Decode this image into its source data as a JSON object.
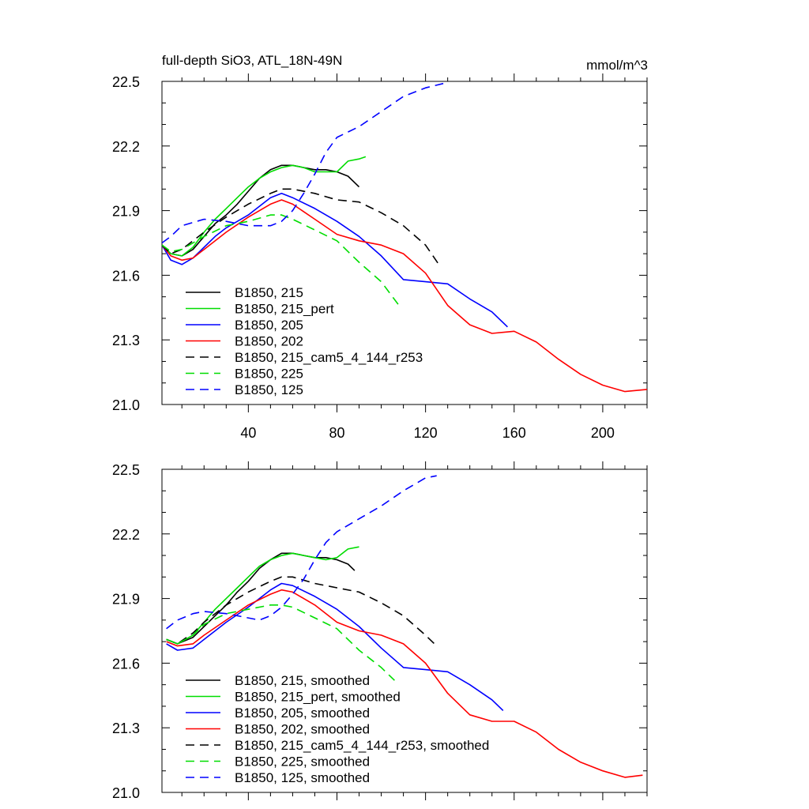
{
  "chart_data": [
    {
      "type": "line",
      "title": "full-depth SiO3, ATL_18N-49N",
      "units": "mmol/m^3",
      "xlim": [
        1,
        220
      ],
      "ylim": [
        21.0,
        22.5
      ],
      "x_ticks": [
        40,
        80,
        120,
        160,
        200
      ],
      "x_tick_labels": [
        "40",
        "80",
        "120",
        "160",
        "200"
      ],
      "y_ticks": [
        21.0,
        21.3,
        21.6,
        21.9,
        22.2,
        22.5
      ],
      "y_tick_labels": [
        "21.0",
        "21.3",
        "21.6",
        "21.9",
        "22.2",
        "22.5"
      ],
      "legend_position": "bottom-left",
      "series": [
        {
          "name": "B1850, 215",
          "color": "#000000",
          "dash": "solid",
          "x": [
            1,
            5,
            10,
            15,
            20,
            25,
            30,
            35,
            40,
            45,
            50,
            55,
            60,
            65,
            70,
            75,
            80,
            85,
            90
          ],
          "y": [
            21.74,
            21.7,
            21.69,
            21.72,
            21.78,
            21.84,
            21.88,
            21.93,
            21.99,
            22.05,
            22.09,
            22.11,
            22.11,
            22.1,
            22.09,
            22.09,
            22.08,
            22.06,
            22.01
          ]
        },
        {
          "name": "B1850, 215_pert",
          "color": "#00dd00",
          "dash": "solid",
          "x": [
            1,
            5,
            10,
            15,
            20,
            25,
            30,
            35,
            40,
            45,
            50,
            55,
            60,
            65,
            70,
            75,
            80,
            85,
            90,
            93
          ],
          "y": [
            21.74,
            21.7,
            21.69,
            21.73,
            21.8,
            21.86,
            21.91,
            21.96,
            22.01,
            22.05,
            22.08,
            22.1,
            22.11,
            22.1,
            22.08,
            22.08,
            22.08,
            22.13,
            22.14,
            22.15
          ]
        },
        {
          "name": "B1850, 205",
          "color": "#0000ff",
          "dash": "solid",
          "x": [
            1,
            5,
            10,
            15,
            20,
            25,
            30,
            40,
            50,
            55,
            60,
            70,
            80,
            90,
            100,
            110,
            120,
            130,
            140,
            150,
            157
          ],
          "y": [
            21.74,
            21.67,
            21.65,
            21.68,
            21.73,
            21.78,
            21.82,
            21.88,
            21.96,
            21.98,
            21.96,
            21.91,
            21.85,
            21.78,
            21.69,
            21.58,
            21.57,
            21.56,
            21.49,
            21.43,
            21.36
          ]
        },
        {
          "name": "B1850, 202",
          "color": "#ff0000",
          "dash": "solid",
          "x": [
            1,
            5,
            10,
            15,
            20,
            30,
            40,
            50,
            55,
            60,
            70,
            80,
            90,
            100,
            110,
            120,
            130,
            140,
            150,
            160,
            170,
            180,
            190,
            200,
            210,
            220
          ],
          "y": [
            21.74,
            21.69,
            21.67,
            21.68,
            21.72,
            21.8,
            21.87,
            21.93,
            21.95,
            21.93,
            21.86,
            21.79,
            21.76,
            21.74,
            21.7,
            21.61,
            21.46,
            21.37,
            21.33,
            21.34,
            21.29,
            21.21,
            21.14,
            21.09,
            21.06,
            21.07
          ]
        },
        {
          "name": "B1850, 215_cam5_4_144_r253",
          "color": "#000000",
          "dash": "dashed",
          "x": [
            1,
            5,
            10,
            20,
            30,
            40,
            50,
            55,
            60,
            70,
            80,
            90,
            100,
            110,
            120,
            126
          ],
          "y": [
            21.74,
            21.7,
            21.72,
            21.8,
            21.87,
            21.93,
            21.98,
            22.0,
            22.0,
            21.98,
            21.95,
            21.94,
            21.89,
            21.83,
            21.74,
            21.65
          ]
        },
        {
          "name": "B1850, 225",
          "color": "#00dd00",
          "dash": "dashed",
          "x": [
            1,
            5,
            10,
            20,
            30,
            40,
            50,
            55,
            60,
            70,
            80,
            90,
            100,
            108
          ],
          "y": [
            21.74,
            21.71,
            21.72,
            21.78,
            21.83,
            21.85,
            21.88,
            21.88,
            21.86,
            21.81,
            21.76,
            21.66,
            21.57,
            21.46
          ]
        },
        {
          "name": "B1850, 125",
          "color": "#0000ff",
          "dash": "dashed",
          "x": [
            1,
            5,
            10,
            20,
            30,
            40,
            50,
            55,
            60,
            65,
            70,
            75,
            80,
            90,
            100,
            110,
            120,
            128
          ],
          "y": [
            21.75,
            21.78,
            21.83,
            21.86,
            21.85,
            21.83,
            21.83,
            21.85,
            21.9,
            21.98,
            22.07,
            22.17,
            22.24,
            22.29,
            22.36,
            22.43,
            22.47,
            22.49
          ]
        }
      ]
    },
    {
      "type": "line",
      "title": "",
      "units": "",
      "xlim": [
        1,
        220
      ],
      "ylim": [
        21.0,
        22.5
      ],
      "x_ticks": [
        40,
        80,
        120,
        160,
        200
      ],
      "x_tick_labels": [],
      "y_ticks": [
        21.0,
        21.3,
        21.6,
        21.9,
        22.2,
        22.5
      ],
      "y_tick_labels": [
        "21.0",
        "21.3",
        "21.6",
        "21.9",
        "22.2",
        "22.5"
      ],
      "legend_position": "bottom-left",
      "series": [
        {
          "name": "B1850, 215, smoothed",
          "color": "#000000",
          "dash": "solid",
          "x": [
            3,
            8,
            15,
            20,
            25,
            30,
            35,
            40,
            45,
            50,
            55,
            60,
            65,
            70,
            75,
            80,
            85,
            88
          ],
          "y": [
            21.71,
            21.69,
            21.72,
            21.77,
            21.82,
            21.87,
            21.93,
            21.98,
            22.04,
            22.08,
            22.11,
            22.11,
            22.1,
            22.09,
            22.09,
            22.08,
            22.06,
            22.03
          ]
        },
        {
          "name": "B1850, 215_pert, smoothed",
          "color": "#00dd00",
          "dash": "solid",
          "x": [
            3,
            8,
            15,
            20,
            25,
            30,
            35,
            40,
            45,
            50,
            55,
            60,
            65,
            70,
            75,
            80,
            85,
            90
          ],
          "y": [
            21.71,
            21.69,
            21.73,
            21.79,
            21.85,
            21.9,
            21.95,
            22.0,
            22.05,
            22.08,
            22.1,
            22.11,
            22.1,
            22.09,
            22.08,
            22.09,
            22.13,
            22.14
          ]
        },
        {
          "name": "B1850, 205, smoothed",
          "color": "#0000ff",
          "dash": "solid",
          "x": [
            3,
            8,
            15,
            20,
            30,
            40,
            50,
            55,
            60,
            70,
            80,
            90,
            100,
            110,
            120,
            130,
            140,
            150,
            155
          ],
          "y": [
            21.69,
            21.66,
            21.67,
            21.71,
            21.79,
            21.86,
            21.94,
            21.97,
            21.96,
            21.91,
            21.85,
            21.77,
            21.67,
            21.58,
            21.57,
            21.56,
            21.5,
            21.43,
            21.38
          ]
        },
        {
          "name": "B1850, 202, smoothed",
          "color": "#ff0000",
          "dash": "solid",
          "x": [
            3,
            8,
            15,
            20,
            30,
            40,
            50,
            55,
            60,
            70,
            80,
            90,
            100,
            110,
            120,
            130,
            140,
            150,
            160,
            170,
            180,
            190,
            200,
            210,
            218
          ],
          "y": [
            21.7,
            21.68,
            21.69,
            21.73,
            21.8,
            21.87,
            21.92,
            21.94,
            21.93,
            21.87,
            21.79,
            21.75,
            21.73,
            21.69,
            21.6,
            21.46,
            21.36,
            21.33,
            21.33,
            21.28,
            21.2,
            21.14,
            21.1,
            21.07,
            21.08
          ]
        },
        {
          "name": "B1850, 215_cam5_4_144_r253, smoothed",
          "color": "#000000",
          "dash": "dashed",
          "x": [
            3,
            8,
            15,
            20,
            30,
            40,
            50,
            55,
            60,
            70,
            80,
            90,
            100,
            110,
            120,
            125
          ],
          "y": [
            21.71,
            21.69,
            21.74,
            21.79,
            21.87,
            21.93,
            21.98,
            22.0,
            22.0,
            21.97,
            21.95,
            21.93,
            21.88,
            21.82,
            21.73,
            21.68
          ]
        },
        {
          "name": "B1850, 225, smoothed",
          "color": "#00dd00",
          "dash": "dashed",
          "x": [
            3,
            8,
            15,
            20,
            30,
            40,
            50,
            55,
            60,
            70,
            80,
            90,
            100,
            106
          ],
          "y": [
            21.71,
            21.69,
            21.73,
            21.78,
            21.83,
            21.85,
            21.87,
            21.87,
            21.86,
            21.81,
            21.76,
            21.66,
            21.58,
            21.52
          ]
        },
        {
          "name": "B1850, 125, smoothed",
          "color": "#0000ff",
          "dash": "dashed",
          "x": [
            3,
            8,
            15,
            20,
            30,
            40,
            45,
            50,
            55,
            60,
            65,
            70,
            75,
            80,
            90,
            100,
            110,
            120,
            125
          ],
          "y": [
            21.76,
            21.8,
            21.83,
            21.84,
            21.83,
            21.81,
            21.8,
            21.82,
            21.86,
            21.92,
            21.99,
            22.08,
            22.16,
            22.21,
            22.27,
            22.33,
            22.4,
            22.46,
            22.47
          ]
        }
      ]
    }
  ]
}
